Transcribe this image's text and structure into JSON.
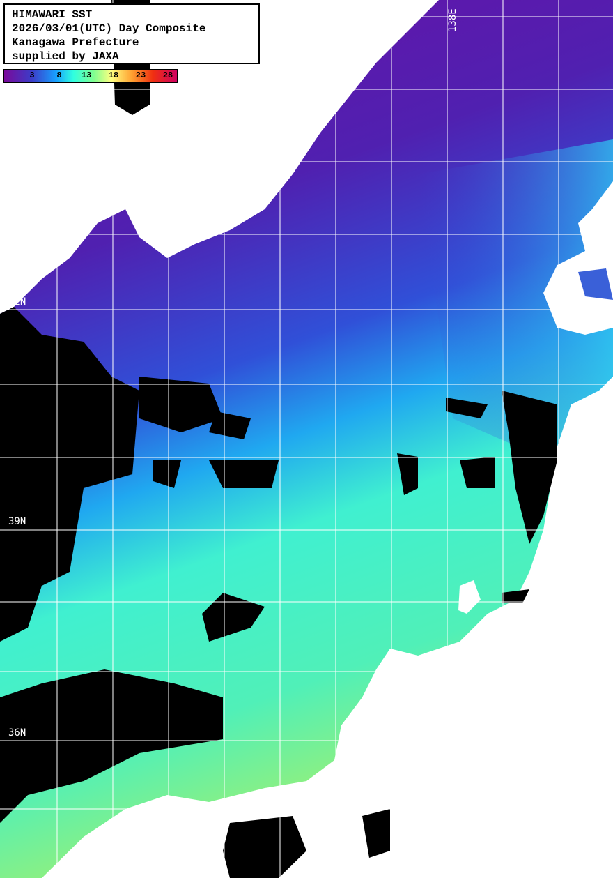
{
  "title": {
    "line1": "HIMAWARI SST",
    "line2": "2026/03/01(UTC) Day Composite",
    "line3": "Kanagawa Prefecture",
    "line4": "supplied by JAXA"
  },
  "colorbar": {
    "ticks": [
      "3",
      "8",
      "13",
      "18",
      "23",
      "28"
    ],
    "colors": [
      "#7a0a9a",
      "#3c3cc8",
      "#18a0ff",
      "#30ffe0",
      "#80ff90",
      "#ffff80",
      "#ffa030",
      "#f03010",
      "#d00060"
    ]
  },
  "grid_labels": {
    "lat_42": "42N",
    "lat_39": "39N",
    "lat_36": "36N",
    "lon_138": "138E"
  },
  "legend_colors": {
    "land": "#ffffff",
    "no_data": "#000000"
  }
}
